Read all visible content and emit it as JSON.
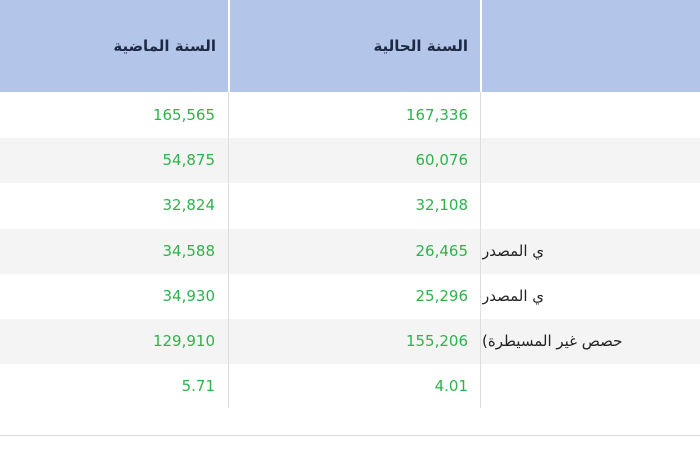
{
  "table": {
    "headers": [
      "السنة الماضية",
      "السنة الحالية",
      ""
    ],
    "rows": [
      {
        "last_year": "165,565",
        "current_year": "167,336",
        "label": ""
      },
      {
        "last_year": "54,875",
        "current_year": "60,076",
        "label": ""
      },
      {
        "last_year": "32,824",
        "current_year": "32,108",
        "label": ""
      },
      {
        "last_year": "34,588",
        "current_year": "26,465",
        "label": "ي المصدر"
      },
      {
        "last_year": "34,930",
        "current_year": "25,296",
        "label": "ي المصدر"
      },
      {
        "last_year": "129,910",
        "current_year": "155,206",
        "label": "حصص غير المسيطرة)"
      },
      {
        "last_year": "5.71",
        "current_year": "4.01",
        "label": ""
      }
    ]
  },
  "colors": {
    "header_bg": "#b3c6ea",
    "value_green": "#2fb24c",
    "alt_row": "#f4f4f4"
  }
}
